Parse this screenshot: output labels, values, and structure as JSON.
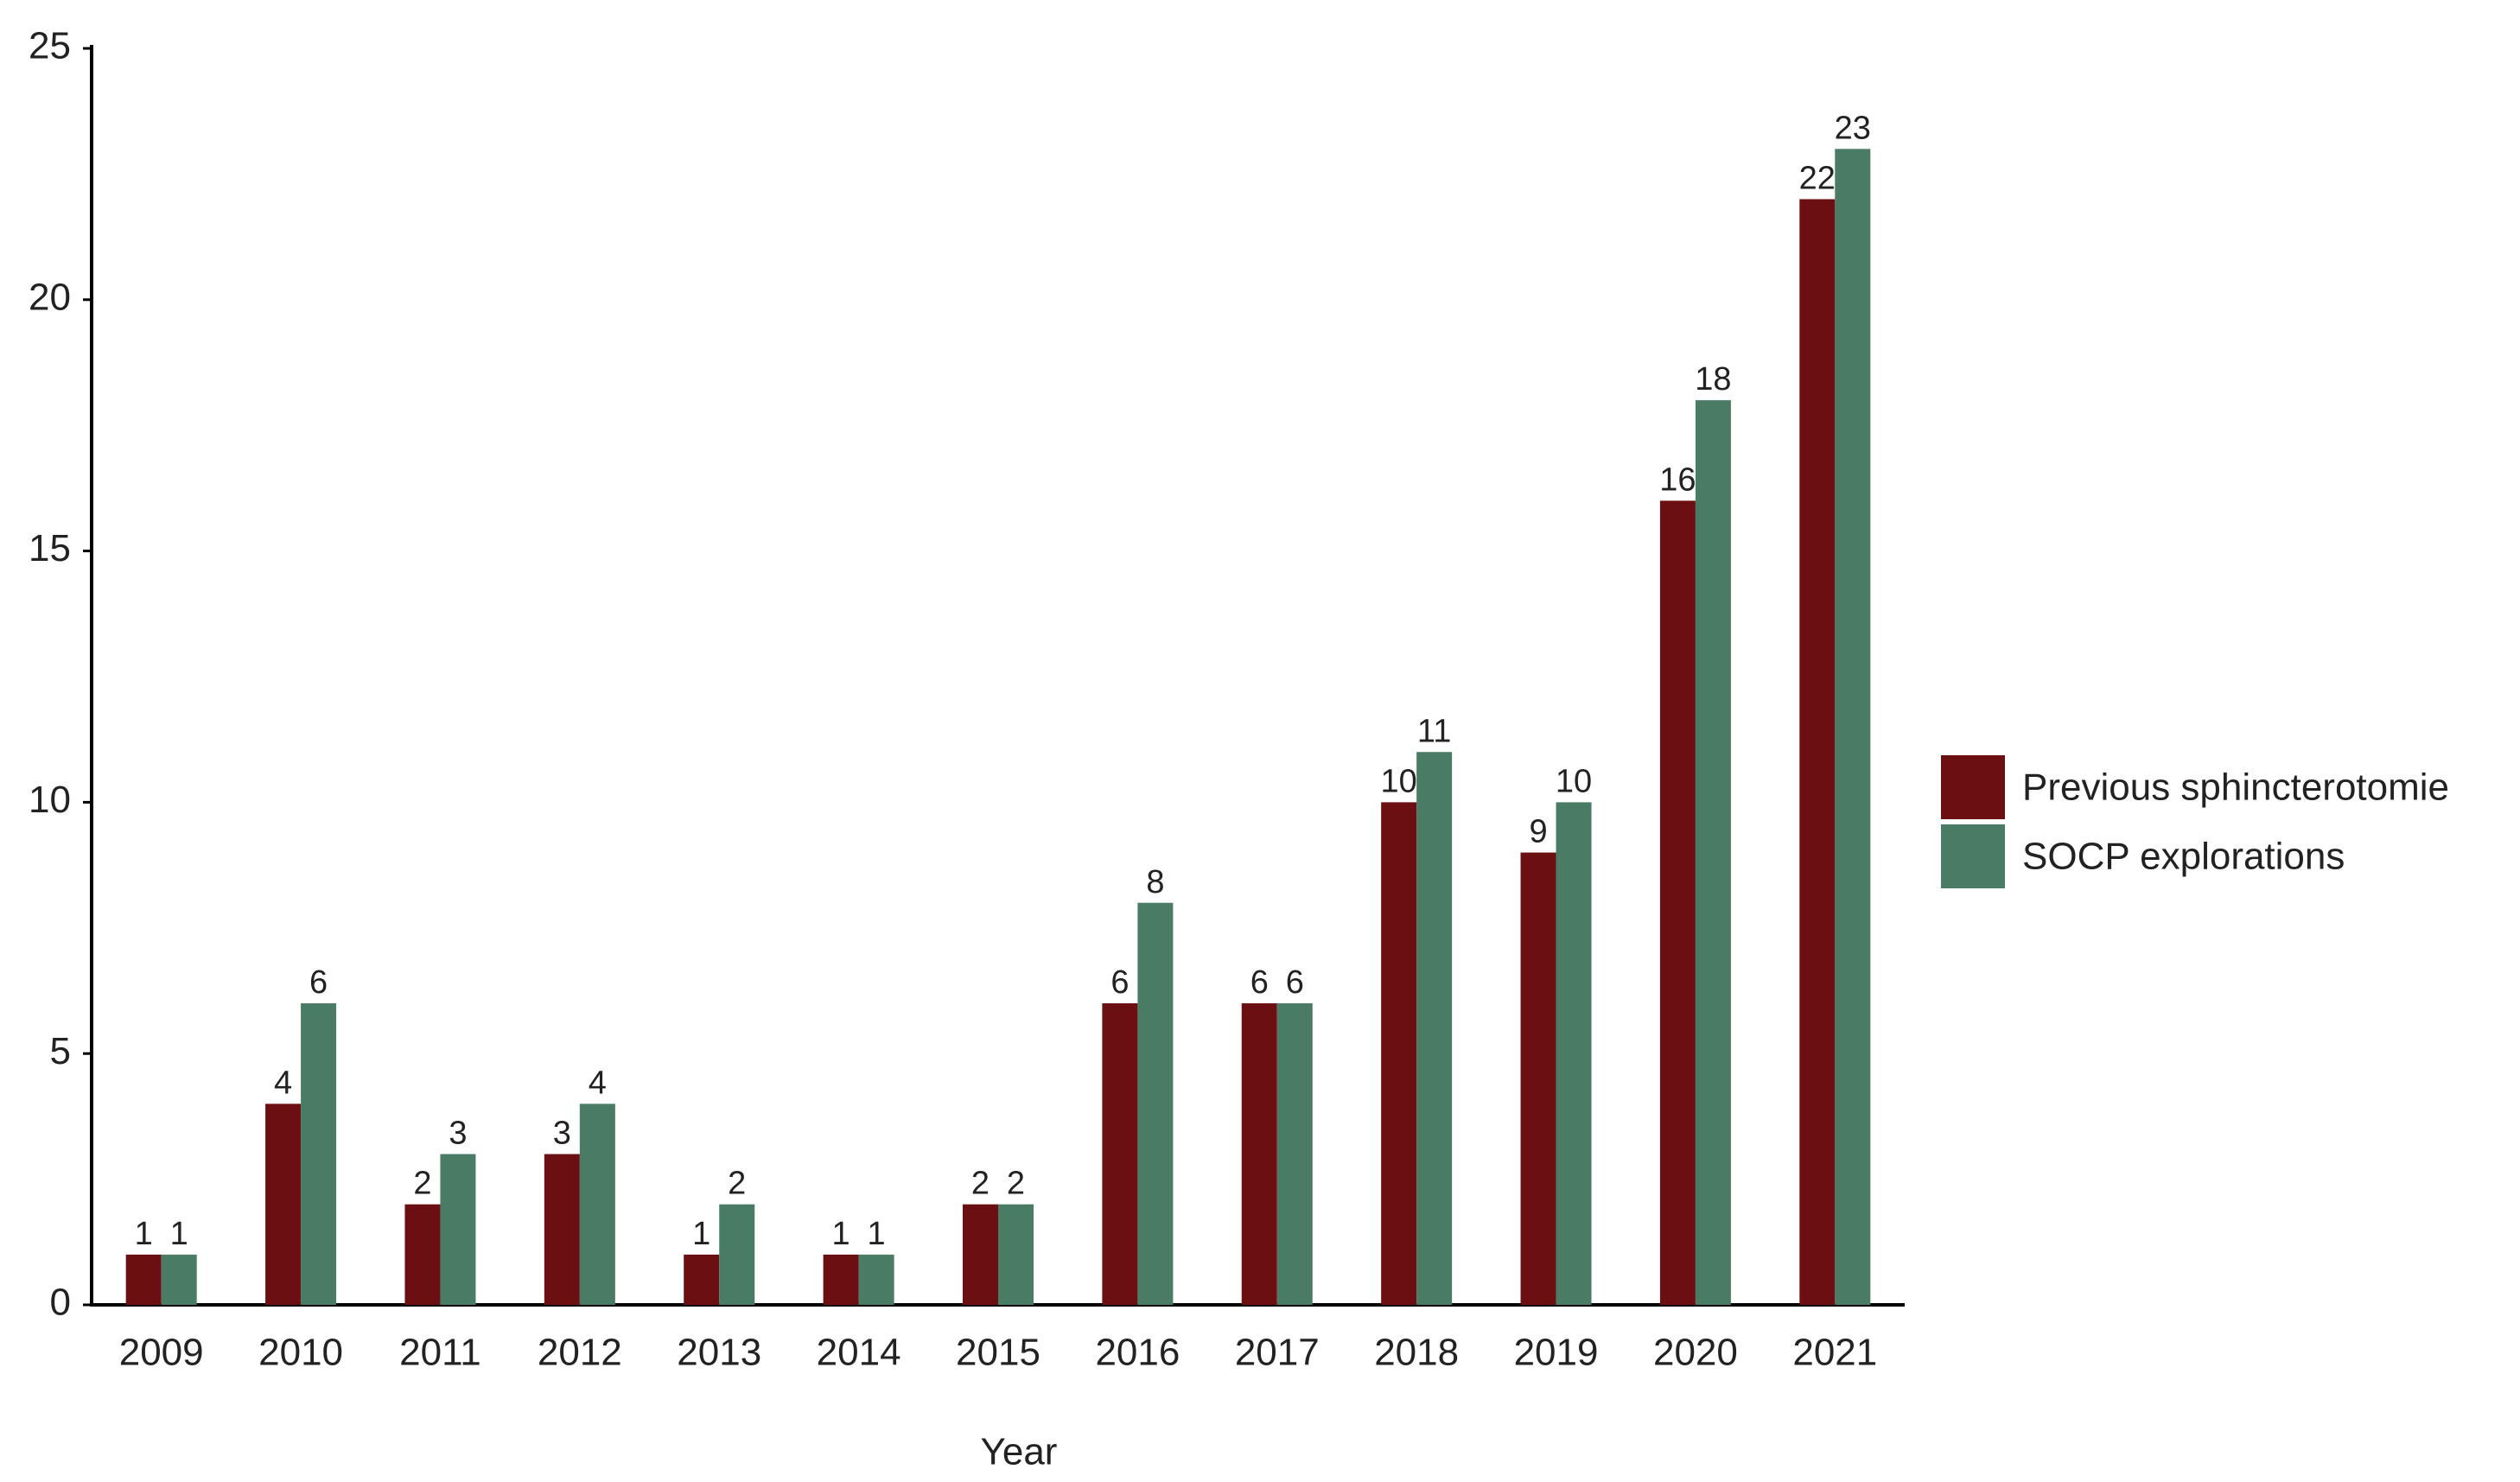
{
  "chart_data": {
    "type": "bar",
    "x_label": "Year",
    "categories": [
      "2009",
      "2010",
      "2011",
      "2012",
      "2013",
      "2014",
      "2015",
      "2016",
      "2017",
      "2018",
      "2019",
      "2020",
      "2021"
    ],
    "series": [
      {
        "name": "Previous sphincterotomie",
        "color": "#6b0f12",
        "values": [
          1,
          4,
          2,
          3,
          1,
          1,
          2,
          6,
          6,
          10,
          9,
          16,
          22
        ]
      },
      {
        "name": "SOCP explorations",
        "color": "#4a7c65",
        "values": [
          1,
          6,
          3,
          4,
          2,
          1,
          2,
          8,
          6,
          11,
          10,
          18,
          23
        ]
      }
    ],
    "ylim": [
      0,
      25
    ],
    "yticks": [
      0,
      5,
      10,
      15,
      20,
      25
    ],
    "grid": false,
    "legend": "right"
  }
}
